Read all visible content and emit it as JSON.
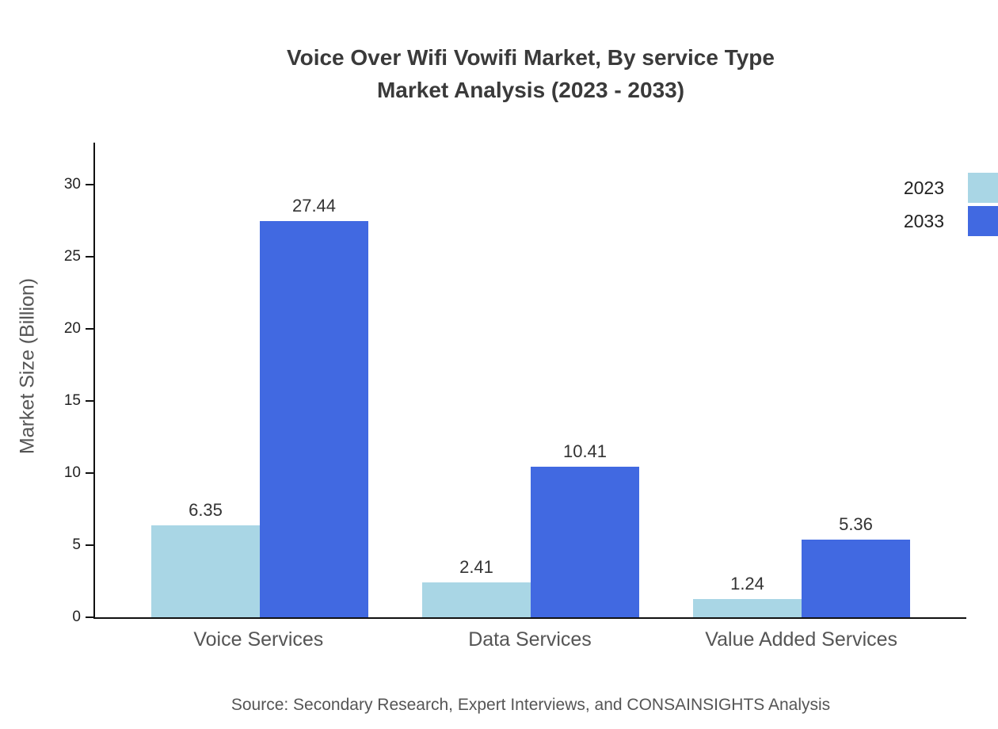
{
  "chart_data": {
    "type": "bar",
    "title_line1": "Voice Over Wifi Vowifi Market, By service Type",
    "title_line2": "Market Analysis (2023 - 2033)",
    "ylabel": "Market Size (Billion)",
    "xlabel": "",
    "categories": [
      "Voice Services",
      "Data Services",
      "Value Added Services"
    ],
    "series": [
      {
        "name": "2023",
        "color": "#a9d6e5",
        "values": [
          6.35,
          2.41,
          1.24
        ]
      },
      {
        "name": "2033",
        "color": "#4169e1",
        "values": [
          27.44,
          10.41,
          5.36
        ]
      }
    ],
    "y_ticks": [
      0,
      5,
      10,
      15,
      20,
      25,
      30
    ],
    "ylim": [
      0,
      33
    ],
    "grid": false,
    "legend_position": "top-right",
    "source": "Source: Secondary Research, Expert Interviews, and CONSAINSIGHTS Analysis"
  }
}
